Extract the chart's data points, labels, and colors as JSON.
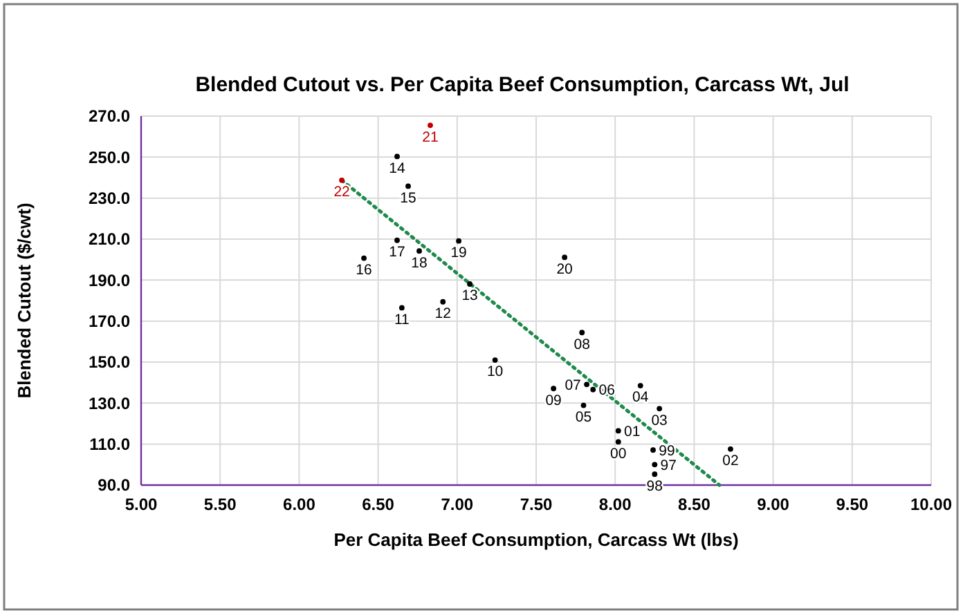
{
  "chart_data": {
    "type": "scatter",
    "title": "Blended Cutout vs. Per Capita Beef Consumption, Carcass Wt, Jul",
    "xlabel": "Per Capita Beef Consumption, Carcass Wt (lbs)",
    "ylabel": "Blended Cutout ($/cwt)",
    "xlim": [
      5,
      10
    ],
    "ylim": [
      90,
      270
    ],
    "xticks": [
      {
        "value": 5,
        "label": "5.00"
      },
      {
        "value": 5.5,
        "label": "5.50"
      },
      {
        "value": 6,
        "label": "6.00"
      },
      {
        "value": 6.5,
        "label": "6.50"
      },
      {
        "value": 7,
        "label": "7.00"
      },
      {
        "value": 7.5,
        "label": "7.50"
      },
      {
        "value": 8,
        "label": "8.00"
      },
      {
        "value": 8.5,
        "label": "8.50"
      },
      {
        "value": 9,
        "label": "9.00"
      },
      {
        "value": 9.5,
        "label": "9.50"
      },
      {
        "value": 10,
        "label": "10.00"
      }
    ],
    "yticks": [
      {
        "value": 90,
        "label": "90.0"
      },
      {
        "value": 110,
        "label": "110.0"
      },
      {
        "value": 130,
        "label": "130.0"
      },
      {
        "value": 150,
        "label": "150.0"
      },
      {
        "value": 170,
        "label": "170.0"
      },
      {
        "value": 190,
        "label": "190.0"
      },
      {
        "value": 210,
        "label": "210.0"
      },
      {
        "value": 230,
        "label": "230.0"
      },
      {
        "value": 250,
        "label": "250.0"
      },
      {
        "value": 270,
        "label": "270.0"
      }
    ],
    "grid": true,
    "series": [
      {
        "marker": "circle",
        "x": [
          8.25,
          8.25,
          8.24,
          8.02,
          8.02,
          8.73,
          8.28,
          8.16,
          7.8,
          7.86,
          7.82,
          7.79,
          7.61,
          7.24,
          6.65,
          6.91,
          7.08,
          6.62,
          6.69,
          6.41,
          6.62,
          6.76,
          7.01,
          7.68,
          6.83,
          6.27
        ],
        "values": [
          100.0,
          95.3,
          107.1,
          111.1,
          116.5,
          107.6,
          127.3,
          138.5,
          128.9,
          136.6,
          139.1,
          164.4,
          137.1,
          151.0,
          176.5,
          179.4,
          188.1,
          250.3,
          235.8,
          200.7,
          209.4,
          204.2,
          209.1,
          201.1,
          265.5,
          238.7
        ],
        "colors": [
          "#000000",
          "#000000",
          "#000000",
          "#000000",
          "#000000",
          "#000000",
          "#000000",
          "#000000",
          "#000000",
          "#000000",
          "#000000",
          "#000000",
          "#000000",
          "#000000",
          "#000000",
          "#000000",
          "#000000",
          "#000000",
          "#000000",
          "#000000",
          "#000000",
          "#000000",
          "#000000",
          "#000000",
          "#c00000",
          "#c00000"
        ]
      },
      {
        "type": "line",
        "color": "#1e8a4c",
        "line_style": "dotted",
        "x": [
          6.27,
          8.66
        ],
        "values": [
          238.7,
          90.0
        ]
      }
    ],
    "annotations": [
      {
        "text": "97",
        "x": 8.25,
        "y": 100.0
      },
      {
        "text": "98",
        "x": 8.25,
        "y": 95.3
      },
      {
        "text": "99",
        "x": 8.24,
        "y": 107.1
      },
      {
        "text": "00",
        "x": 8.02,
        "y": 111.1
      },
      {
        "text": "01",
        "x": 8.02,
        "y": 116.5
      },
      {
        "text": "02",
        "x": 8.73,
        "y": 107.6
      },
      {
        "text": "03",
        "x": 8.28,
        "y": 127.3
      },
      {
        "text": "04",
        "x": 8.16,
        "y": 138.5
      },
      {
        "text": "05",
        "x": 7.8,
        "y": 128.9
      },
      {
        "text": "06",
        "x": 7.86,
        "y": 136.6
      },
      {
        "text": "07",
        "x": 7.82,
        "y": 139.1
      },
      {
        "text": "08",
        "x": 7.79,
        "y": 164.4
      },
      {
        "text": "09",
        "x": 7.61,
        "y": 137.1
      },
      {
        "text": "10",
        "x": 7.24,
        "y": 151.0
      },
      {
        "text": "11",
        "x": 6.65,
        "y": 176.5
      },
      {
        "text": "12",
        "x": 6.91,
        "y": 179.4
      },
      {
        "text": "13",
        "x": 7.08,
        "y": 188.1
      },
      {
        "text": "14",
        "x": 6.62,
        "y": 250.3
      },
      {
        "text": "15",
        "x": 6.69,
        "y": 235.8
      },
      {
        "text": "16",
        "x": 6.41,
        "y": 200.7
      },
      {
        "text": "17",
        "x": 6.62,
        "y": 209.4
      },
      {
        "text": "18",
        "x": 6.76,
        "y": 204.2
      },
      {
        "text": "19",
        "x": 7.01,
        "y": 209.1
      },
      {
        "text": "20",
        "x": 7.68,
        "y": 201.1
      },
      {
        "text": "21",
        "x": 6.83,
        "y": 265.5
      },
      {
        "text": "22",
        "x": 6.27,
        "y": 238.7
      }
    ]
  }
}
